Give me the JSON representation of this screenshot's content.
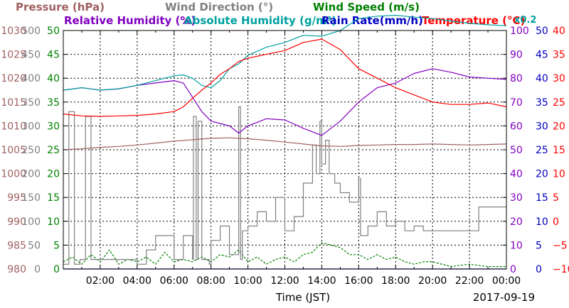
{
  "chart_data": {
    "type": "line",
    "date": "2017-09-19",
    "xlabel": "Time (JST)",
    "x_ticks": [
      "02:00",
      "04:00",
      "06:00",
      "08:00",
      "10:00",
      "12:00",
      "14:00",
      "16:00",
      "18:00",
      "20:00",
      "22:00",
      "00:00"
    ],
    "x_range_hours": [
      0,
      24
    ],
    "grid": true,
    "legend": [
      {
        "label": "Pressure (hPa)",
        "color": "#a06060"
      },
      {
        "label": "Wind Direction (°)",
        "color": "#808080"
      },
      {
        "label": "Wind Speed (m/s)",
        "color": "#008000"
      },
      {
        "label": "Relative Humidity (%)",
        "color": "#8000c0"
      },
      {
        "label": "Absolute Humidity (g/m³)",
        "color": "#00a0a0"
      },
      {
        "label": "Rain Rate(mm/h)",
        "color": "#0000c0"
      },
      {
        "label": "Temperature (°C)",
        "color": "#ff0000"
      },
      {
        "label": "x0.2",
        "color": "#00a0a0"
      }
    ],
    "axes": {
      "pressure": {
        "labels": [
          "980",
          "985",
          "990",
          "995",
          "1000",
          "1005",
          "1010",
          "1015",
          "1020",
          "1025",
          "1030"
        ],
        "color": "#a06060",
        "range": [
          980,
          1030
        ]
      },
      "wind_dir": {
        "labels": [
          "0",
          "50",
          "100",
          "150",
          "200",
          "250",
          "300",
          "350",
          "400",
          "450",
          "500"
        ],
        "color": "#808080",
        "range": [
          0,
          500
        ]
      },
      "wind_speed": {
        "labels": [
          "0",
          "5",
          "10",
          "15",
          "20",
          "25",
          "30",
          "35",
          "40",
          "45",
          "50"
        ],
        "color": "#008000",
        "range": [
          0,
          50
        ]
      },
      "humidity": {
        "labels": [
          "0",
          "10",
          "20",
          "30",
          "40",
          "50",
          "60",
          "70",
          "80",
          "90",
          "100"
        ],
        "color": "#8000c0",
        "range": [
          0,
          100
        ]
      },
      "rain": {
        "labels": [
          "0",
          "5",
          "10",
          "15",
          "20",
          "25",
          "30",
          "35",
          "40",
          "45",
          "50"
        ],
        "color": "#0000c0",
        "range": [
          0,
          50
        ]
      },
      "temperature": {
        "labels": [
          "−10",
          "−5",
          "0",
          "5",
          "10",
          "15",
          "20",
          "25",
          "30",
          "35",
          "40"
        ],
        "color": "#ff0000",
        "range": [
          -10,
          40
        ]
      }
    },
    "series": [
      {
        "name": "Pressure (hPa)",
        "axis": "pressure",
        "color": "#a06060",
        "x": [
          0,
          1,
          2,
          3,
          4,
          5,
          6,
          7,
          8,
          9,
          10,
          11,
          12,
          13,
          14,
          15,
          16,
          17,
          18,
          19,
          20,
          21,
          22,
          23,
          24
        ],
        "values": [
          1005.0,
          1005.2,
          1005.5,
          1005.7,
          1006.0,
          1006.4,
          1006.8,
          1007.1,
          1007.4,
          1007.5,
          1007.3,
          1007.0,
          1006.6,
          1006.2,
          1005.8,
          1005.7,
          1005.9,
          1006.0,
          1006.1,
          1006.1,
          1006.2,
          1006.1,
          1006.0,
          1006.1,
          1006.2
        ]
      },
      {
        "name": "Temperature (°C)",
        "axis": "temperature",
        "color": "#ff0000",
        "x": [
          0,
          1,
          2,
          3,
          4,
          5,
          6,
          6.5,
          7,
          7.5,
          8,
          8.5,
          9,
          9.5,
          10,
          11,
          12,
          13,
          14,
          15,
          16,
          17,
          18,
          19,
          20,
          21,
          22,
          23,
          24
        ],
        "values": [
          22.5,
          22.1,
          22.0,
          22.1,
          22.2,
          22.5,
          23.0,
          24.0,
          25.8,
          27.5,
          29.0,
          30.8,
          32.0,
          33.5,
          34.2,
          35.0,
          35.8,
          37.5,
          38.2,
          36.0,
          32.0,
          30.0,
          28.0,
          26.5,
          25.0,
          24.5,
          24.5,
          24.8,
          24.0
        ]
      },
      {
        "name": "Absolute Humidity (g/m³)",
        "axis": "temperature",
        "color": "#00a0a0",
        "x": [
          0,
          1,
          2,
          3,
          4,
          5,
          6,
          6.5,
          7,
          7.5,
          8,
          8.5,
          9,
          9.5,
          10,
          11,
          12,
          13,
          14,
          15,
          16,
          17,
          18,
          19,
          20,
          21,
          22,
          23,
          24
        ],
        "values": [
          27.5,
          28.0,
          27.5,
          27.8,
          28.5,
          29.5,
          30.5,
          30.7,
          30.0,
          28.5,
          28.0,
          29.5,
          32.0,
          33.0,
          34.8,
          36.5,
          37.5,
          39.0,
          38.8,
          40.0,
          42.5,
          43.0,
          43.2,
          42.8,
          42.5,
          42.0,
          41.5,
          41.2,
          41.0
        ]
      },
      {
        "name": "Relative Humidity (%)",
        "axis": "humidity",
        "color": "#8000c0",
        "x": [
          0,
          1,
          2,
          3,
          4,
          5,
          6,
          6.5,
          7,
          7.5,
          8,
          8.5,
          9,
          9.5,
          10,
          11,
          12,
          13,
          14,
          15,
          16,
          17,
          18,
          19,
          20,
          21,
          22,
          23,
          24
        ],
        "values": [
          75.0,
          76.0,
          75.0,
          75.5,
          77.0,
          78.0,
          79.0,
          78.0,
          72.0,
          66.0,
          62.0,
          61.0,
          60.0,
          57.0,
          60.0,
          63.0,
          62.5,
          59.0,
          56.0,
          62.0,
          70.0,
          76.0,
          78.0,
          82.0,
          84.0,
          82.5,
          80.5,
          80.0,
          79.5
        ]
      },
      {
        "name": "Wind Direction (°)",
        "axis": "wind_dir",
        "color": "#808080",
        "x": [
          0,
          0.3,
          0.6,
          0.9,
          1.2,
          1.5,
          2,
          3,
          4,
          4.5,
          5,
          5.5,
          6,
          6.5,
          7,
          7.05,
          7.2,
          7.3,
          7.5,
          7.9,
          8,
          8.5,
          9,
          9.5,
          9.6,
          9.7,
          10,
          10.5,
          11,
          11.5,
          12,
          12.5,
          13,
          13.5,
          13.7,
          13.9,
          14,
          14.2,
          14.4,
          14.7,
          15,
          15.5,
          16,
          16.1,
          16.5,
          17,
          17.5,
          18,
          18.5,
          19,
          19.5,
          20,
          21,
          22,
          22.5,
          23,
          24
        ],
        "values": [
          10,
          330,
          10,
          20,
          320,
          20,
          20,
          20,
          10,
          40,
          70,
          70,
          20,
          70,
          20,
          320,
          20,
          310,
          20,
          10,
          60,
          90,
          30,
          340,
          20,
          80,
          90,
          120,
          100,
          150,
          80,
          110,
          180,
          260,
          200,
          310,
          220,
          270,
          200,
          180,
          160,
          140,
          190,
          70,
          90,
          120,
          90,
          100,
          80,
          90,
          80,
          80,
          80,
          80,
          130,
          130,
          130
        ]
      },
      {
        "name": "Wind Speed (m/s)",
        "axis": "wind_speed",
        "color": "#008000",
        "x": [
          0,
          0.5,
          1,
          1.5,
          2,
          2.5,
          3,
          3.5,
          4,
          4.5,
          5,
          5.5,
          6,
          6.5,
          7,
          7.5,
          8,
          8.5,
          9,
          9.5,
          10,
          10.5,
          11,
          11.5,
          12,
          12.5,
          13,
          13.5,
          14,
          14.5,
          15,
          15.5,
          16,
          16.5,
          17,
          17.5,
          18,
          18.5,
          19,
          19.5,
          20,
          21,
          22,
          23,
          24
        ],
        "values": [
          1.5,
          2.5,
          1.0,
          3.0,
          1.5,
          4.0,
          1.0,
          2.0,
          1.5,
          2.5,
          1.0,
          3.5,
          1.5,
          2.0,
          1.5,
          2.5,
          1.5,
          3.0,
          2.5,
          4.0,
          1.5,
          2.5,
          1.0,
          2.0,
          2.5,
          1.5,
          3.0,
          3.5,
          5.5,
          5.0,
          4.5,
          3.0,
          3.0,
          2.0,
          3.0,
          2.0,
          2.5,
          1.5,
          1.0,
          1.5,
          1.5,
          0.5,
          1.0,
          0.5,
          0.5
        ]
      },
      {
        "name": "Rain Rate(mm/h)",
        "axis": "rain",
        "color": "#0000c0",
        "x": [
          0,
          24
        ],
        "values": [
          0,
          0
        ]
      }
    ]
  }
}
